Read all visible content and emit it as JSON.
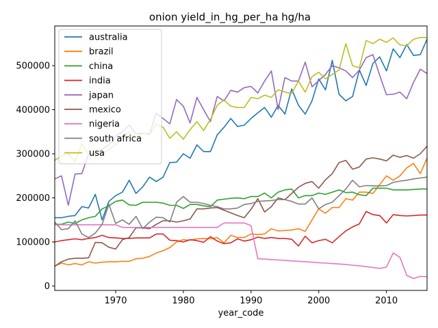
{
  "chart_data": {
    "type": "line",
    "title": "onion yield_in_hg_per_ha hg/ha",
    "xlabel": "year_code",
    "ylabel": "",
    "xlim": [
      1961,
      2016
    ],
    "ylim": [
      -10000,
      590000
    ],
    "x_ticks": [
      1970,
      1980,
      1990,
      2000,
      2010
    ],
    "y_ticks": [
      0,
      100000,
      200000,
      300000,
      400000,
      500000
    ],
    "legend_position": "top-left",
    "x": [
      1961,
      1962,
      1963,
      1964,
      1965,
      1966,
      1967,
      1968,
      1969,
      1970,
      1971,
      1972,
      1973,
      1974,
      1975,
      1976,
      1977,
      1978,
      1979,
      1980,
      1981,
      1982,
      1983,
      1984,
      1985,
      1986,
      1987,
      1988,
      1989,
      1990,
      1991,
      1992,
      1993,
      1994,
      1995,
      1996,
      1997,
      1998,
      1999,
      2000,
      2001,
      2002,
      2003,
      2004,
      2005,
      2006,
      2007,
      2008,
      2009,
      2010,
      2011,
      2012,
      2013,
      2014,
      2015,
      2016
    ],
    "series": [
      {
        "name": "australia",
        "color": "#1f77b4",
        "values": [
          155000,
          155000,
          158000,
          160000,
          180000,
          177000,
          208000,
          150000,
          192000,
          205000,
          213000,
          240000,
          210000,
          225000,
          247000,
          237000,
          247000,
          280000,
          281000,
          300000,
          290000,
          320000,
          305000,
          305000,
          343000,
          360000,
          380000,
          362000,
          365000,
          380000,
          393000,
          405000,
          383000,
          410000,
          390000,
          447000,
          410000,
          390000,
          420000,
          470000,
          445000,
          512000,
          435000,
          420000,
          430000,
          490000,
          455000,
          505000,
          520000,
          488000,
          538000,
          518000,
          548000,
          523000,
          525000,
          560000
        ]
      },
      {
        "name": "brazil",
        "color": "#ff7f0e",
        "values": [
          45000,
          52000,
          48000,
          51000,
          48000,
          55000,
          52000,
          54000,
          55000,
          55000,
          56000,
          56000,
          62000,
          63000,
          67000,
          75000,
          80000,
          87000,
          100000,
          105000,
          104000,
          107000,
          108000,
          107000,
          110000,
          98000,
          115000,
          110000,
          110000,
          118000,
          117000,
          118000,
          130000,
          125000,
          126000,
          127000,
          130000,
          124000,
          150000,
          175000,
          165000,
          178000,
          178000,
          198000,
          195000,
          213000,
          213000,
          210000,
          230000,
          250000,
          240000,
          250000,
          268000,
          278000,
          255000,
          290000
        ]
      },
      {
        "name": "china",
        "color": "#2ca02c",
        "values": [
          140000,
          140000,
          145000,
          142000,
          150000,
          155000,
          158000,
          175000,
          182000,
          192000,
          195000,
          184000,
          183000,
          190000,
          190000,
          190000,
          188000,
          183000,
          183000,
          176000,
          185000,
          185000,
          182000,
          180000,
          195000,
          197000,
          199000,
          200000,
          198000,
          203000,
          203000,
          211000,
          200000,
          213000,
          218000,
          220000,
          200000,
          205000,
          205000,
          211000,
          208000,
          213000,
          218000,
          212000,
          213000,
          207000,
          205000,
          222000,
          222000,
          222000,
          218000,
          218000,
          218000,
          219000,
          220000,
          220000
        ]
      },
      {
        "name": "india",
        "color": "#d62728",
        "values": [
          100000,
          103000,
          105000,
          107000,
          105000,
          108000,
          110000,
          115000,
          110000,
          109000,
          108000,
          108000,
          109000,
          109000,
          109000,
          118000,
          118000,
          104000,
          103000,
          100000,
          105000,
          103000,
          99000,
          112000,
          102000,
          96000,
          98000,
          107000,
          102000,
          105000,
          111000,
          108000,
          110000,
          108000,
          108000,
          106000,
          91000,
          113000,
          98000,
          103000,
          106000,
          98000,
          112000,
          125000,
          134000,
          141000,
          169000,
          162000,
          160000,
          143000,
          162000,
          160000,
          159000,
          160000,
          161000,
          161000
        ]
      },
      {
        "name": "japan",
        "color": "#9467bd",
        "values": [
          243000,
          250000,
          183000,
          254000,
          255000,
          300000,
          300000,
          310000,
          320000,
          340000,
          350000,
          365000,
          345000,
          347000,
          345000,
          392000,
          380000,
          368000,
          423000,
          408000,
          370000,
          428000,
          400000,
          373000,
          430000,
          420000,
          444000,
          440000,
          450000,
          453000,
          438000,
          465000,
          488000,
          400000,
          473000,
          465000,
          465000,
          508000,
          452000,
          466000,
          480000,
          500000,
          495000,
          488000,
          473000,
          490000,
          518000,
          525000,
          478000,
          434000,
          435000,
          440000,
          425000,
          462000,
          492000,
          482000
        ]
      },
      {
        "name": "mexico",
        "color": "#8c564b",
        "values": [
          45000,
          55000,
          61000,
          63000,
          63000,
          64000,
          99000,
          98000,
          88000,
          84000,
          105000,
          110000,
          132000,
          132000,
          130000,
          140000,
          148000,
          148000,
          145000,
          148000,
          152000,
          175000,
          175000,
          177000,
          178000,
          172000,
          166000,
          160000,
          155000,
          174000,
          198000,
          168000,
          180000,
          200000,
          196000,
          210000,
          224000,
          233000,
          237000,
          222000,
          241000,
          255000,
          280000,
          285000,
          265000,
          270000,
          288000,
          291000,
          288000,
          284000,
          297000,
          292000,
          296000,
          290000,
          300000,
          317000
        ]
      },
      {
        "name": "nigeria",
        "color": "#e377c2",
        "values": [
          139000,
          139000,
          139000,
          139000,
          139000,
          139000,
          139000,
          139000,
          139000,
          139000,
          133000,
          133000,
          133000,
          133000,
          133000,
          133000,
          133000,
          133000,
          133000,
          133000,
          133000,
          133000,
          133000,
          133000,
          133000,
          143000,
          143000,
          143000,
          143000,
          137000,
          62000,
          61000,
          60000,
          59000,
          58000,
          57000,
          56000,
          55000,
          54000,
          53000,
          52000,
          51000,
          50000,
          49000,
          47000,
          46000,
          44000,
          42000,
          40000,
          43000,
          75000,
          65000,
          24000,
          17000,
          22000,
          21000
        ]
      },
      {
        "name": "south africa",
        "color": "#7f7f7f",
        "values": [
          145000,
          128000,
          130000,
          148000,
          118000,
          110000,
          120000,
          140000,
          185000,
          142000,
          150000,
          140000,
          158000,
          130000,
          145000,
          156000,
          155000,
          145000,
          190000,
          203000,
          190000,
          190000,
          187000,
          183000,
          180000,
          175000,
          175000,
          177000,
          185000,
          187000,
          192000,
          193000,
          194000,
          196000,
          196000,
          192000,
          186000,
          186000,
          200000,
          175000,
          185000,
          190000,
          205000,
          220000,
          240000,
          225000,
          228000,
          227000,
          227000,
          228000,
          235000,
          238000,
          240000,
          243000,
          245000,
          247000
        ]
      },
      {
        "name": "usa",
        "color": "#bcbd22",
        "values": [
          285000,
          295000,
          300000,
          283000,
          322000,
          300000,
          295000,
          300000,
          310000,
          320000,
          340000,
          350000,
          335000,
          347000,
          343000,
          367000,
          360000,
          335000,
          350000,
          333000,
          355000,
          373000,
          353000,
          378000,
          410000,
          422000,
          408000,
          405000,
          405000,
          428000,
          425000,
          433000,
          428000,
          445000,
          440000,
          437000,
          465000,
          440000,
          475000,
          485000,
          470000,
          480000,
          490000,
          550000,
          500000,
          495000,
          557000,
          550000,
          560000,
          553000,
          563000,
          547000,
          545000,
          560000,
          564000,
          564000
        ]
      }
    ]
  }
}
